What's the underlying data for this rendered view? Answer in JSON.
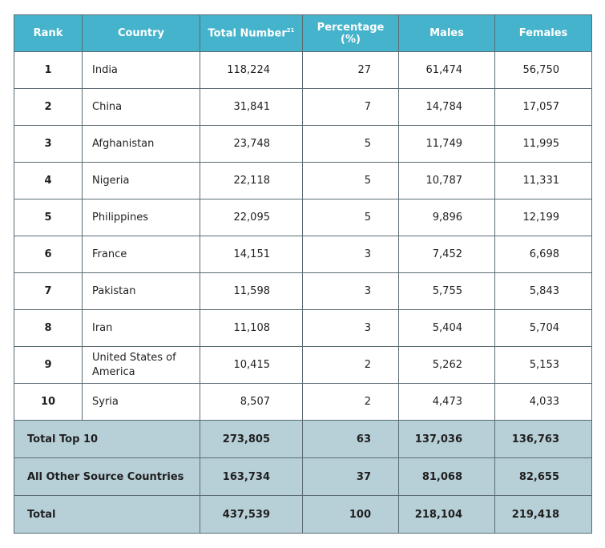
{
  "table": {
    "headers": {
      "rank": "Rank",
      "country": "Country",
      "total": "Total Number",
      "total_note": "21",
      "percentage": "Percentage (%)",
      "males": "Males",
      "females": "Females"
    },
    "rows": [
      {
        "rank": "1",
        "country": "India",
        "total": "118,224",
        "percentage": "27",
        "males": "61,474",
        "females": "56,750"
      },
      {
        "rank": "2",
        "country": "China",
        "total": "31,841",
        "percentage": "7",
        "males": "14,784",
        "females": "17,057"
      },
      {
        "rank": "3",
        "country": "Afghanistan",
        "total": "23,748",
        "percentage": "5",
        "males": "11,749",
        "females": "11,995"
      },
      {
        "rank": "4",
        "country": "Nigeria",
        "total": "22,118",
        "percentage": "5",
        "males": "10,787",
        "females": "11,331"
      },
      {
        "rank": "5",
        "country": "Philippines",
        "total": "22,095",
        "percentage": "5",
        "males": "9,896",
        "females": "12,199"
      },
      {
        "rank": "6",
        "country": "France",
        "total": "14,151",
        "percentage": "3",
        "males": "7,452",
        "females": "6,698"
      },
      {
        "rank": "7",
        "country": "Pakistan",
        "total": "11,598",
        "percentage": "3",
        "males": "5,755",
        "females": "5,843"
      },
      {
        "rank": "8",
        "country": "Iran",
        "total": "11,108",
        "percentage": "3",
        "males": "5,404",
        "females": "5,704"
      },
      {
        "rank": "9",
        "country": "United States of America",
        "total": "10,415",
        "percentage": "2",
        "males": "5,262",
        "females": "5,153"
      },
      {
        "rank": "10",
        "country": "Syria",
        "total": "8,507",
        "percentage": "2",
        "males": "4,473",
        "females": "4,033"
      }
    ],
    "summary": [
      {
        "label": "Total Top 10",
        "total": "273,805",
        "percentage": "63",
        "males": "137,036",
        "females": "136,763"
      },
      {
        "label": "All Other Source Countries",
        "total": "163,734",
        "percentage": "37",
        "males": "81,068",
        "females": "82,655"
      },
      {
        "label": "Total",
        "total": "437,539",
        "percentage": "100",
        "males": "218,104",
        "females": "219,418"
      }
    ]
  },
  "colors": {
    "header_background": "#45b3cb",
    "summary_background": "#b7cfd7",
    "border": "#5a6b72"
  }
}
